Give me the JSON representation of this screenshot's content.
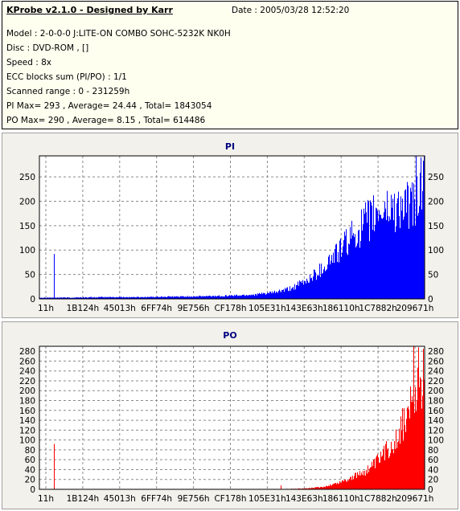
{
  "header": {
    "title": "KProbe v2.1.0 - Designed by Karr",
    "date": "Date : 2005/03/28 12:52:20",
    "model": "Model : 2-0-0-0 J:LITE-ON COMBO SOHC-5232K NK0H",
    "disc": "Disc : DVD-ROM ,  []",
    "speed": "Speed : 8x",
    "ecc": "ECC blocks sum (PI/PO) : 1/1",
    "range": "Scanned range : 0 - 231259h",
    "pi_summary": "PI Max= 293 , Average= 24.44 , Total= 1843054",
    "po_summary": "PO Max= 290 , Average= 8.15 , Total= 614486"
  },
  "colors": {
    "pi": "#0000ff",
    "po": "#ff0000",
    "title": "#000080",
    "panel_bg": "#f2f1ec",
    "plot_bg": "#ffffff"
  },
  "chart_data": [
    {
      "type": "area",
      "title": "PI",
      "series": [
        {
          "name": "PI",
          "color": "#0000ff"
        }
      ],
      "x_tick_labels": [
        "11h",
        "1B124h",
        "45013h",
        "6FF74h",
        "9E756h",
        "CF178h",
        "105E31h",
        "143E63h",
        "186110h",
        "1C7882h",
        "209671h"
      ],
      "x_range": [
        0,
        231259
      ],
      "ylim": [
        0,
        293
      ],
      "y_ticks": [
        0,
        50,
        100,
        150,
        200,
        250
      ],
      "grid": true,
      "envelope": [
        [
          0,
          3
        ],
        [
          20000,
          3
        ],
        [
          40000,
          4
        ],
        [
          60000,
          4
        ],
        [
          80000,
          5
        ],
        [
          100000,
          6
        ],
        [
          120000,
          8
        ],
        [
          130000,
          10
        ],
        [
          140000,
          14
        ],
        [
          150000,
          22
        ],
        [
          160000,
          40
        ],
        [
          170000,
          70
        ],
        [
          175000,
          90
        ],
        [
          180000,
          110
        ],
        [
          185000,
          130
        ],
        [
          190000,
          150
        ],
        [
          195000,
          170
        ],
        [
          200000,
          185
        ],
        [
          205000,
          200
        ],
        [
          210000,
          205
        ],
        [
          220000,
          210
        ],
        [
          225000,
          215
        ],
        [
          228000,
          240
        ],
        [
          231259,
          260
        ]
      ],
      "spikes": [
        [
          8700,
          92
        ],
        [
          226000,
          293
        ],
        [
          229000,
          290
        ],
        [
          230500,
          283
        ]
      ]
    },
    {
      "type": "area",
      "title": "PO",
      "series": [
        {
          "name": "PO",
          "color": "#ff0000"
        }
      ],
      "x_tick_labels": [
        "11h",
        "1B124h",
        "45013h",
        "6FF74h",
        "9E756h",
        "CF178h",
        "105E31h",
        "143E63h",
        "186110h",
        "1C7882h",
        "209671h"
      ],
      "x_range": [
        0,
        231259
      ],
      "ylim": [
        0,
        290
      ],
      "y_ticks": [
        0,
        20,
        40,
        60,
        80,
        100,
        120,
        140,
        160,
        180,
        200,
        220,
        240,
        260,
        280
      ],
      "grid": true,
      "envelope": [
        [
          0,
          0
        ],
        [
          140000,
          0
        ],
        [
          160000,
          2
        ],
        [
          170000,
          5
        ],
        [
          180000,
          15
        ],
        [
          190000,
          30
        ],
        [
          200000,
          50
        ],
        [
          205000,
          70
        ],
        [
          210000,
          95
        ],
        [
          215000,
          120
        ],
        [
          220000,
          160
        ],
        [
          225000,
          200
        ],
        [
          228000,
          230
        ],
        [
          231259,
          265
        ]
      ],
      "spikes": [
        [
          8700,
          92
        ],
        [
          145000,
          8
        ],
        [
          224500,
          290
        ],
        [
          227500,
          288
        ],
        [
          230500,
          285
        ]
      ]
    }
  ]
}
